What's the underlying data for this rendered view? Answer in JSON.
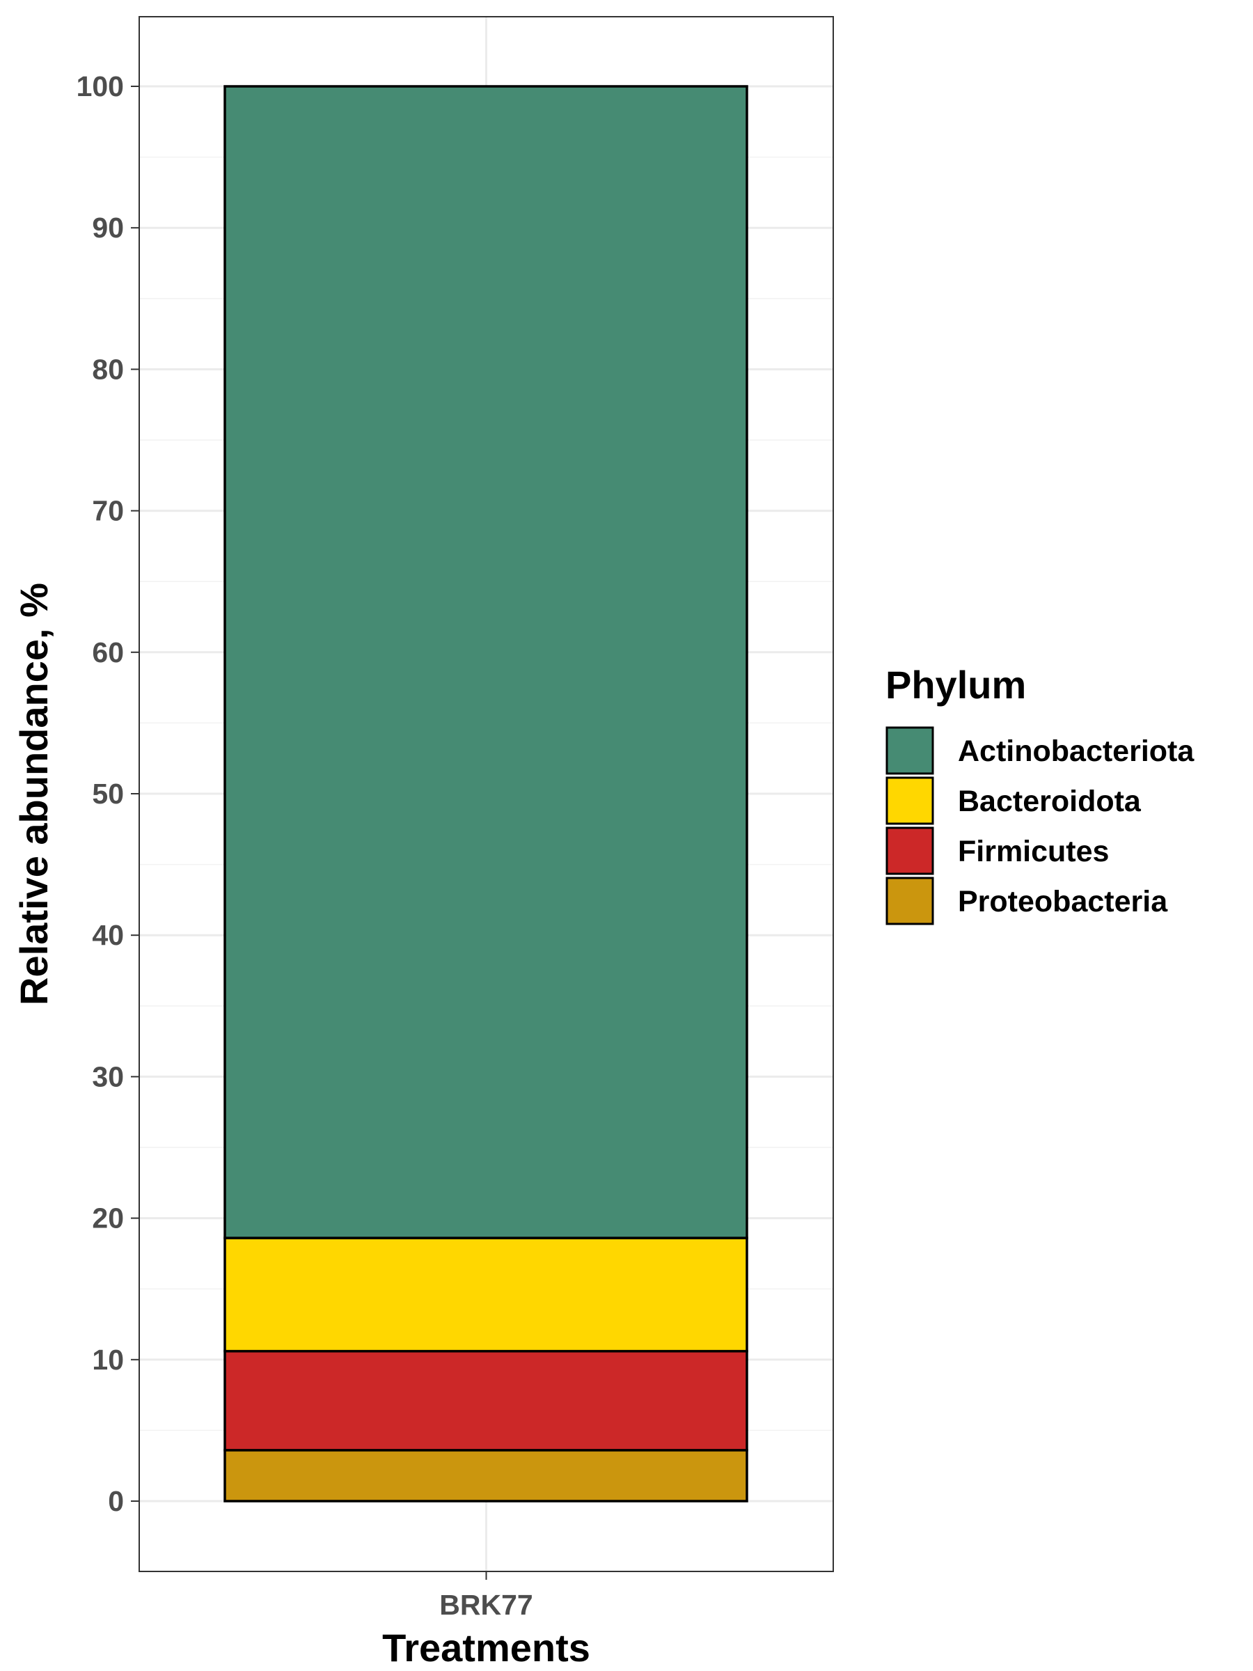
{
  "chart_data": {
    "type": "bar",
    "stacked": true,
    "categories": [
      "BRK77"
    ],
    "series": [
      {
        "name": "Proteobacteria",
        "values": [
          3.6
        ],
        "color": "#CB960E"
      },
      {
        "name": "Firmicutes",
        "values": [
          7.0
        ],
        "color": "#CC2828"
      },
      {
        "name": "Bacteroidota",
        "values": [
          8.0
        ],
        "color": "#FFD700"
      },
      {
        "name": "Actinobacteriota",
        "values": [
          81.4
        ],
        "color": "#468B73"
      }
    ],
    "xlabel": "Treatments",
    "ylabel": "Relative abundance, %",
    "ylim": [
      -5,
      105
    ],
    "yticks": [
      0,
      10,
      20,
      30,
      40,
      50,
      60,
      70,
      80,
      90,
      100
    ],
    "ytick_labels": [
      "0",
      "10",
      "20",
      "30",
      "40",
      "50",
      "60",
      "70",
      "80",
      "90",
      "100"
    ],
    "grid": true,
    "legend": {
      "title": "Phylum",
      "position": "right",
      "entries": [
        "Actinobacteriota",
        "Bacteroidota",
        "Firmicutes",
        "Proteobacteria"
      ]
    }
  }
}
